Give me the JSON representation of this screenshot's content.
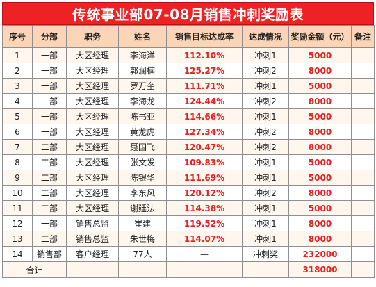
{
  "title": "传统事业部07-08月销售冲刺奖励表",
  "headers": [
    "序号",
    "分部",
    "职务",
    "姓名",
    "销售目标达成率",
    "达成情况",
    "奖励金额（元）",
    "备注"
  ],
  "rows": [
    {
      "no": "1",
      "dept": "一部",
      "position": "大区经理",
      "name": "李海洋",
      "rate": "112.10%",
      "status": "冲刺1",
      "bonus": "5000",
      "note": ""
    },
    {
      "no": "2",
      "dept": "一部",
      "position": "大区经理",
      "name": "郭润楠",
      "rate": "125.27%",
      "status": "冲刺2",
      "bonus": "8000",
      "note": ""
    },
    {
      "no": "3",
      "dept": "一部",
      "position": "大区经理",
      "name": "罗万奎",
      "rate": "111.71%",
      "status": "冲刺1",
      "bonus": "5000",
      "note": ""
    },
    {
      "no": "4",
      "dept": "一部",
      "position": "大区经理",
      "name": "李海龙",
      "rate": "124.44%",
      "status": "冲刺2",
      "bonus": "8000",
      "note": ""
    },
    {
      "no": "5",
      "dept": "一部",
      "position": "大区经理",
      "name": "陈书亚",
      "rate": "114.66%",
      "status": "冲刺1",
      "bonus": "5000",
      "note": ""
    },
    {
      "no": "6",
      "dept": "一部",
      "position": "大区经理",
      "name": "黄龙虎",
      "rate": "127.34%",
      "status": "冲刺2",
      "bonus": "8000",
      "note": ""
    },
    {
      "no": "7",
      "dept": "二部",
      "position": "大区经理",
      "name": "聂国飞",
      "rate": "120.47%",
      "status": "冲刺2",
      "bonus": "8000",
      "note": ""
    },
    {
      "no": "8",
      "dept": "二部",
      "position": "大区经理",
      "name": "张文发",
      "rate": "109.83%",
      "status": "冲刺1",
      "bonus": "5000",
      "note": ""
    },
    {
      "no": "9",
      "dept": "二部",
      "position": "大区经理",
      "name": "陈银华",
      "rate": "111.69%",
      "status": "冲刺1",
      "bonus": "5000",
      "note": ""
    },
    {
      "no": "10",
      "dept": "二部",
      "position": "大区经理",
      "name": "李东风",
      "rate": "120.12%",
      "status": "冲刺2",
      "bonus": "8000",
      "note": ""
    },
    {
      "no": "11",
      "dept": "二部",
      "position": "大区经理",
      "name": "谢廷法",
      "rate": "114.38%",
      "status": "冲刺1",
      "bonus": "5000",
      "note": ""
    },
    {
      "no": "12",
      "dept": "一部",
      "position": "销售总监",
      "name": "崔建",
      "rate": "119.52%",
      "status": "冲刺1",
      "bonus": "8000",
      "note": ""
    },
    {
      "no": "13",
      "dept": "二部",
      "position": "销售总监",
      "name": "朱世梅",
      "rate": "114.07%",
      "status": "冲刺1",
      "bonus": "8000",
      "note": ""
    },
    {
      "no": "14",
      "dept": "销售部",
      "position": "客户经理",
      "name": "77人",
      "rate": "—",
      "status": "冲刺奖",
      "bonus": "232000",
      "note": ""
    }
  ],
  "total": {
    "label": "合计",
    "dept": "—",
    "position": "—",
    "name": "—",
    "rate": "—",
    "status": "—",
    "bonus": "318000",
    "note": ""
  }
}
